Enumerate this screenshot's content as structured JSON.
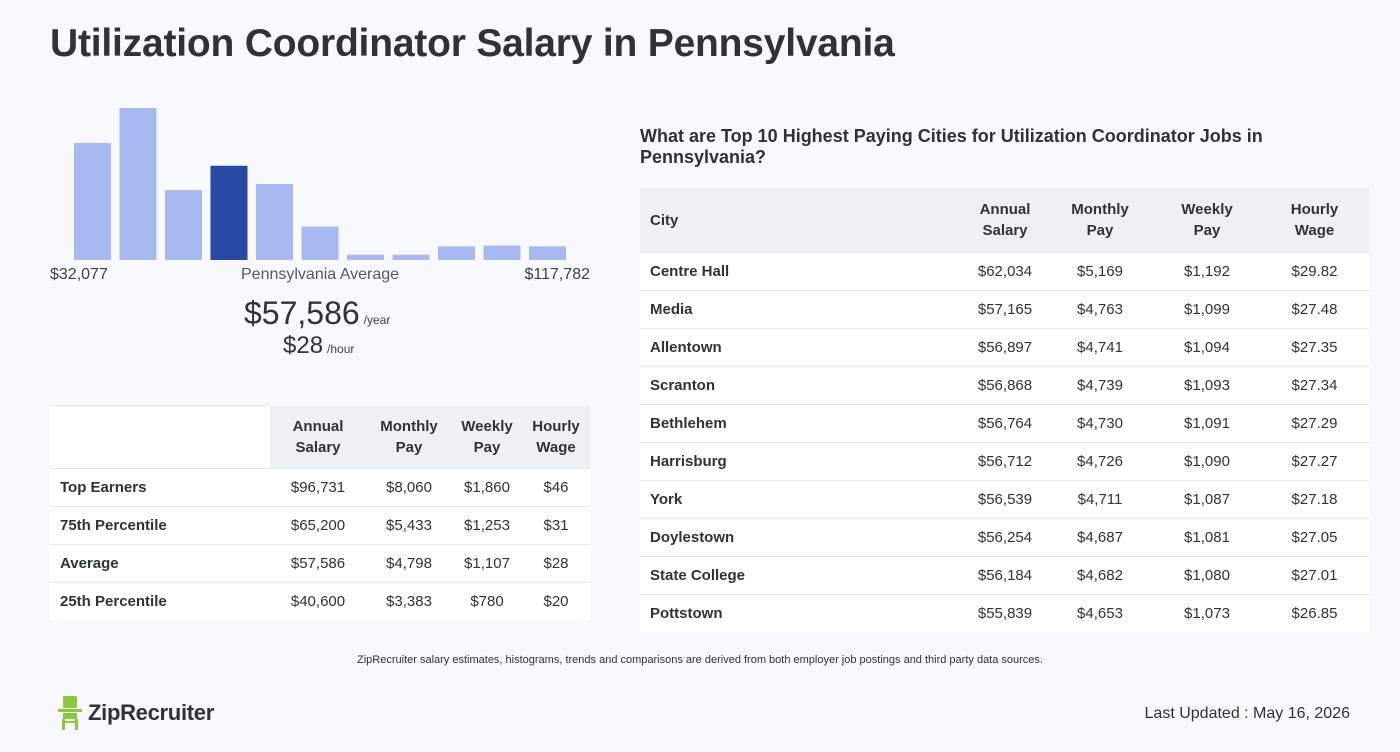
{
  "title": "Utilization Coordinator Salary in Pennsylvania",
  "histogram": {
    "min_label": "$32,077",
    "max_label": "$117,782",
    "avg_label": "Pennsylvania Average",
    "bar_levels": [
      0.77,
      1.0,
      0.46,
      0.62,
      0.5,
      0.22,
      0.035,
      0.035,
      0.09,
      0.095,
      0.09
    ],
    "highlight_index": 3,
    "bar_color": "#a8b8f0",
    "highlight_color": "#2748a3"
  },
  "average": {
    "annual": "$57,586",
    "annual_unit": "/year",
    "hourly": "$28",
    "hourly_unit": "/hour"
  },
  "percentile_table": {
    "headers": [
      "",
      "Annual Salary",
      "Monthly Pay",
      "Weekly Pay",
      "Hourly Wage"
    ],
    "rows": [
      [
        "Top Earners",
        "$96,731",
        "$8,060",
        "$1,860",
        "$46"
      ],
      [
        "75th Percentile",
        "$65,200",
        "$5,433",
        "$1,253",
        "$31"
      ],
      [
        "Average",
        "$57,586",
        "$4,798",
        "$1,107",
        "$28"
      ],
      [
        "25th Percentile",
        "$40,600",
        "$3,383",
        "$780",
        "$20"
      ]
    ]
  },
  "cities": {
    "title": "What are Top 10 Highest Paying Cities for Utilization Coordinator Jobs in Pennsylvania?",
    "headers": [
      "City",
      "Annual Salary",
      "Monthly Pay",
      "Weekly Pay",
      "Hourly Wage"
    ],
    "rows": [
      [
        "Centre Hall",
        "$62,034",
        "$5,169",
        "$1,192",
        "$29.82"
      ],
      [
        "Media",
        "$57,165",
        "$4,763",
        "$1,099",
        "$27.48"
      ],
      [
        "Allentown",
        "$56,897",
        "$4,741",
        "$1,094",
        "$27.35"
      ],
      [
        "Scranton",
        "$56,868",
        "$4,739",
        "$1,093",
        "$27.34"
      ],
      [
        "Bethlehem",
        "$56,764",
        "$4,730",
        "$1,091",
        "$27.29"
      ],
      [
        "Harrisburg",
        "$56,712",
        "$4,726",
        "$1,090",
        "$27.27"
      ],
      [
        "York",
        "$56,539",
        "$4,711",
        "$1,087",
        "$27.18"
      ],
      [
        "Doylestown",
        "$56,254",
        "$4,687",
        "$1,081",
        "$27.05"
      ],
      [
        "State College",
        "$56,184",
        "$4,682",
        "$1,080",
        "$27.01"
      ],
      [
        "Pottstown",
        "$55,839",
        "$4,653",
        "$1,073",
        "$26.85"
      ]
    ]
  },
  "footnote": "ZipRecruiter salary estimates, histograms, trends and comparisons are derived from both employer job postings and third party data sources.",
  "logo": {
    "text": "ZipRecruiter",
    "icon": "ziprecruiter-logo-icon",
    "color": "#8dc63f"
  },
  "last_updated": "Last Updated : May 16, 2026"
}
